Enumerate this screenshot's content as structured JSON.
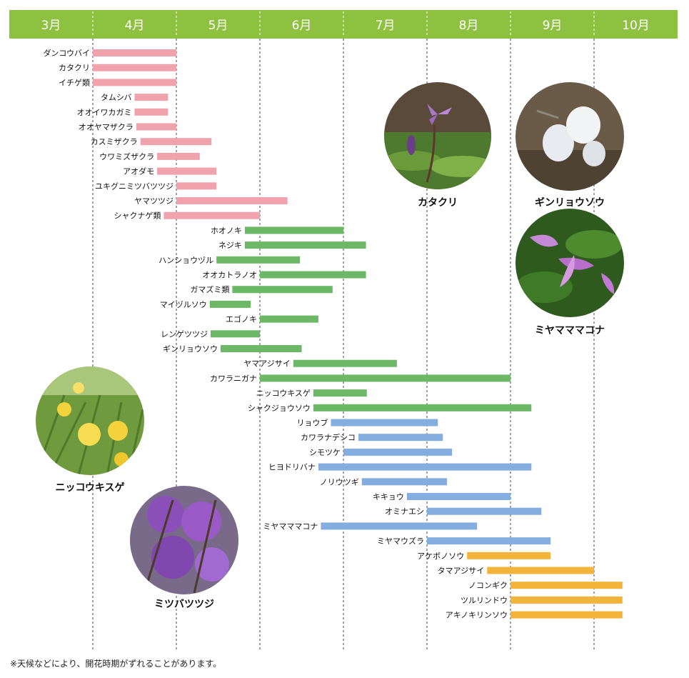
{
  "chart_data": {
    "type": "gantt",
    "months": [
      "3月",
      "4月",
      "5月",
      "6月",
      "7月",
      "8月",
      "9月",
      "10月"
    ],
    "colors": {
      "header": "#8ec13f",
      "header_text": "#ffffff",
      "spring": "#f0a3ad",
      "summer": "#6db866",
      "late_summer": "#84aedf",
      "autumn": "#f4b43c"
    },
    "groups": [
      {
        "color_key": "spring",
        "items": [
          {
            "name": "ダンコウバイ",
            "start": 4.0,
            "end": 5.0
          },
          {
            "name": "カタクリ",
            "start": 4.0,
            "end": 5.0
          },
          {
            "name": "イチゲ類",
            "start": 4.0,
            "end": 5.0
          },
          {
            "name": "タムシバ",
            "start": 4.5,
            "end": 4.9
          },
          {
            "name": "オオイワカガミ",
            "start": 4.5,
            "end": 4.9
          },
          {
            "name": "オオヤマザクラ",
            "start": 4.52,
            "end": 5.0
          },
          {
            "name": "カスミザクラ",
            "start": 4.57,
            "end": 5.42
          },
          {
            "name": "ウワミズザクラ",
            "start": 4.77,
            "end": 5.28
          },
          {
            "name": "アオダモ",
            "start": 4.77,
            "end": 5.48
          },
          {
            "name": "ユキグニミツバツツジ",
            "start": 5.0,
            "end": 5.48
          },
          {
            "name": "ヤマツツジ",
            "start": 5.0,
            "end": 6.33
          },
          {
            "name": "シャクナゲ類",
            "start": 4.85,
            "end": 6.0
          }
        ]
      },
      {
        "color_key": "summer",
        "items": [
          {
            "name": "ホオノキ",
            "start": 5.82,
            "end": 7.0
          },
          {
            "name": "ネジキ",
            "start": 5.82,
            "end": 7.27
          },
          {
            "name": "ハンショウヅル",
            "start": 5.48,
            "end": 6.48
          },
          {
            "name": "オオカトラノオ",
            "start": 6.0,
            "end": 7.27
          },
          {
            "name": "ガマズミ類",
            "start": 5.67,
            "end": 6.87
          },
          {
            "name": "マイヅルソウ",
            "start": 5.4,
            "end": 5.89
          },
          {
            "name": "エゴノキ",
            "start": 6.0,
            "end": 6.7
          },
          {
            "name": "レンゲツツジ",
            "start": 5.41,
            "end": 6.0
          },
          {
            "name": "ギンリョウソウ",
            "start": 5.53,
            "end": 6.5
          },
          {
            "name": "ヤマアジサイ",
            "start": 6.4,
            "end": 7.64
          },
          {
            "name": "カワラニガナ",
            "start": 6.0,
            "end": 9.0
          },
          {
            "name": "ニッコウキスゲ",
            "start": 6.64,
            "end": 7.28
          },
          {
            "name": "シャクジョウソウ",
            "start": 6.64,
            "end": 9.25
          }
        ]
      },
      {
        "color_key": "late_summer",
        "items": [
          {
            "name": "リョウブ",
            "start": 6.85,
            "end": 8.13
          },
          {
            "name": "カワラナデシコ",
            "start": 7.18,
            "end": 8.19
          },
          {
            "name": "シモツケ",
            "start": 7.0,
            "end": 8.3
          },
          {
            "name": "ヒヨドリバナ",
            "start": 6.7,
            "end": 9.25
          },
          {
            "name": "ノリウツギ",
            "start": 7.22,
            "end": 8.24
          },
          {
            "name": "キキョウ",
            "start": 7.76,
            "end": 9.0
          },
          {
            "name": "オミナエシ",
            "start": 8.0,
            "end": 9.37
          },
          {
            "name": "ミヤマママコナ",
            "start": 6.73,
            "end": 8.6
          },
          {
            "name": "ミヤマウズラ",
            "start": 8.0,
            "end": 9.48
          }
        ]
      },
      {
        "color_key": "autumn",
        "items": [
          {
            "name": "アケボノソウ",
            "start": 8.48,
            "end": 9.48
          },
          {
            "name": "タマアジサイ",
            "start": 8.72,
            "end": 10.0
          },
          {
            "name": "ノコンギク",
            "start": 9.0,
            "end": 10.34
          },
          {
            "name": "ツルリンドウ",
            "start": 9.0,
            "end": 10.34
          },
          {
            "name": "アキノキリンソウ",
            "start": 9.0,
            "end": 10.34
          }
        ]
      }
    ]
  },
  "photos": [
    {
      "caption": "カタクリ",
      "icon": "katakuri-photo"
    },
    {
      "caption": "ギンリョウソウ",
      "icon": "ginryousou-photo"
    },
    {
      "caption": "ミヤマママコナ",
      "icon": "miyamamamakona-photo"
    },
    {
      "caption": "ニッコウキスゲ",
      "icon": "nikkoukisuge-photo"
    },
    {
      "caption": "ミツバツツジ",
      "icon": "mitsubatsutsuji-photo"
    }
  ],
  "footnote": "※天候などにより、開花時期がずれることがあります。"
}
